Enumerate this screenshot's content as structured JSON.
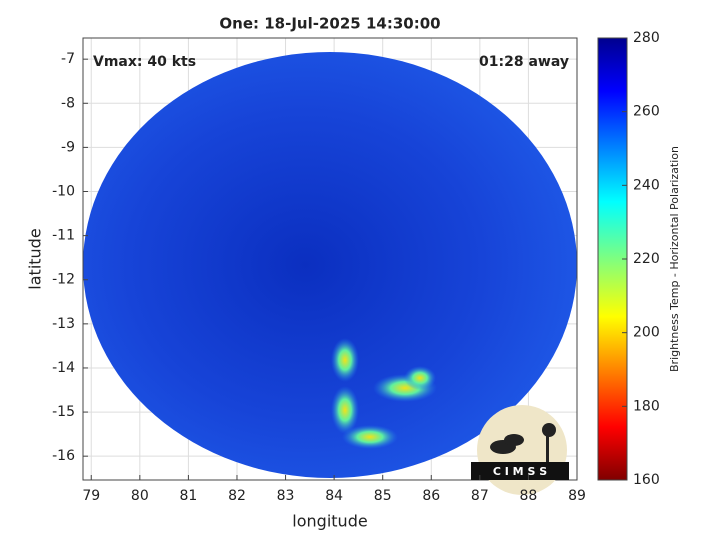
{
  "chart_data": {
    "type": "heatmap",
    "title": "One: 18-Jul-2025 14:30:00",
    "annotations": [
      "Vmax: 40 kts",
      "01:28 away"
    ],
    "xlabel": "longitude",
    "ylabel": "latitude",
    "xlim": [
      78.83,
      89
    ],
    "xticks": [
      79,
      80,
      81,
      82,
      83,
      84,
      85,
      86,
      87,
      88,
      89
    ],
    "ylim": [
      -16.54,
      -6.52
    ],
    "yticks": [
      -7,
      -8,
      -9,
      -10,
      -11,
      -12,
      -13,
      -14,
      -15,
      -16
    ],
    "grid": true,
    "colorbar": {
      "label": "Brightness Temp - Horizontal Polarization",
      "lim": [
        160,
        280
      ],
      "ticks": [
        160,
        180,
        200,
        220,
        240,
        260,
        280
      ],
      "colormap": "jet"
    },
    "logo": "C I M S S"
  }
}
